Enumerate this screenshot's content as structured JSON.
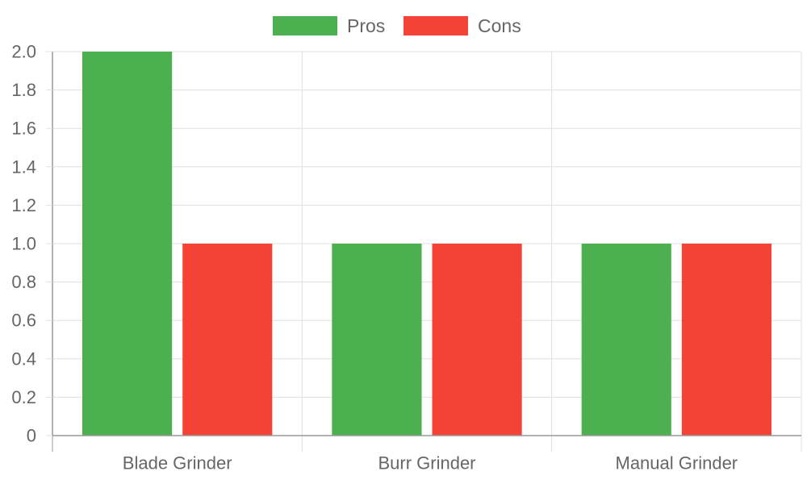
{
  "chart_data": {
    "type": "bar",
    "categories": [
      "Blade Grinder",
      "Burr Grinder",
      "Manual Grinder"
    ],
    "series": [
      {
        "name": "Pros",
        "values": [
          2,
          1,
          1
        ],
        "color": "#4caf50"
      },
      {
        "name": "Cons",
        "values": [
          1,
          1,
          1
        ],
        "color": "#f44336"
      }
    ],
    "ylim": [
      0,
      2
    ],
    "ytick_step": 0.2,
    "yticks": [
      "0",
      "0.2",
      "0.4",
      "0.6",
      "0.8",
      "1.0",
      "1.2",
      "1.4",
      "1.6",
      "1.8",
      "2.0"
    ],
    "grid": true,
    "legend_position": "top-center",
    "axis_color": "#999999",
    "grid_color": "#e0e0e0",
    "text_color": "#666666"
  }
}
